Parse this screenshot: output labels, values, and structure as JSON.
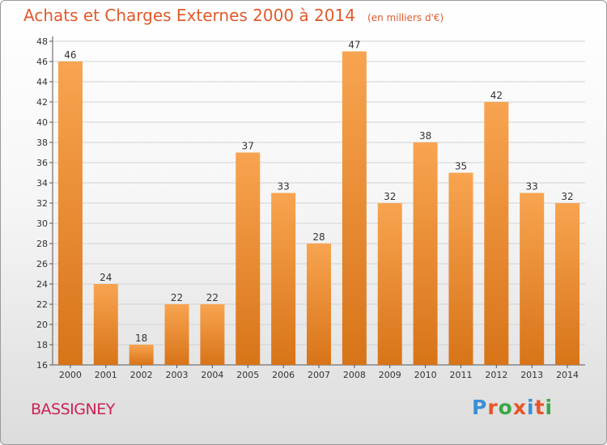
{
  "header": {
    "title": "Achats et Charges Externes 2000 à 2014",
    "subtitle": "(en milliers d'€)"
  },
  "commune": "BASSIGNEY",
  "logo": {
    "text": "Proxiti",
    "colors": [
      "#3a8fd6",
      "#e8542a",
      "#3aa845",
      "#e8542a",
      "#3a8fd6",
      "#e8542a",
      "#3aa845"
    ]
  },
  "chart_data": {
    "type": "bar",
    "title": "Achats et Charges Externes 2000 à 2014",
    "subtitle": "(en milliers d'€)",
    "categories": [
      "2000",
      "2001",
      "2002",
      "2003",
      "2004",
      "2005",
      "2006",
      "2007",
      "2008",
      "2009",
      "2010",
      "2011",
      "2012",
      "2013",
      "2014"
    ],
    "values": [
      46,
      24,
      18,
      22,
      22,
      37,
      33,
      28,
      47,
      32,
      38,
      35,
      42,
      33,
      32
    ],
    "ylim": [
      16,
      48
    ],
    "ytick_step": 2,
    "grid": true,
    "bar_color_top": "#f8a450",
    "bar_color_bottom": "#d87418"
  }
}
